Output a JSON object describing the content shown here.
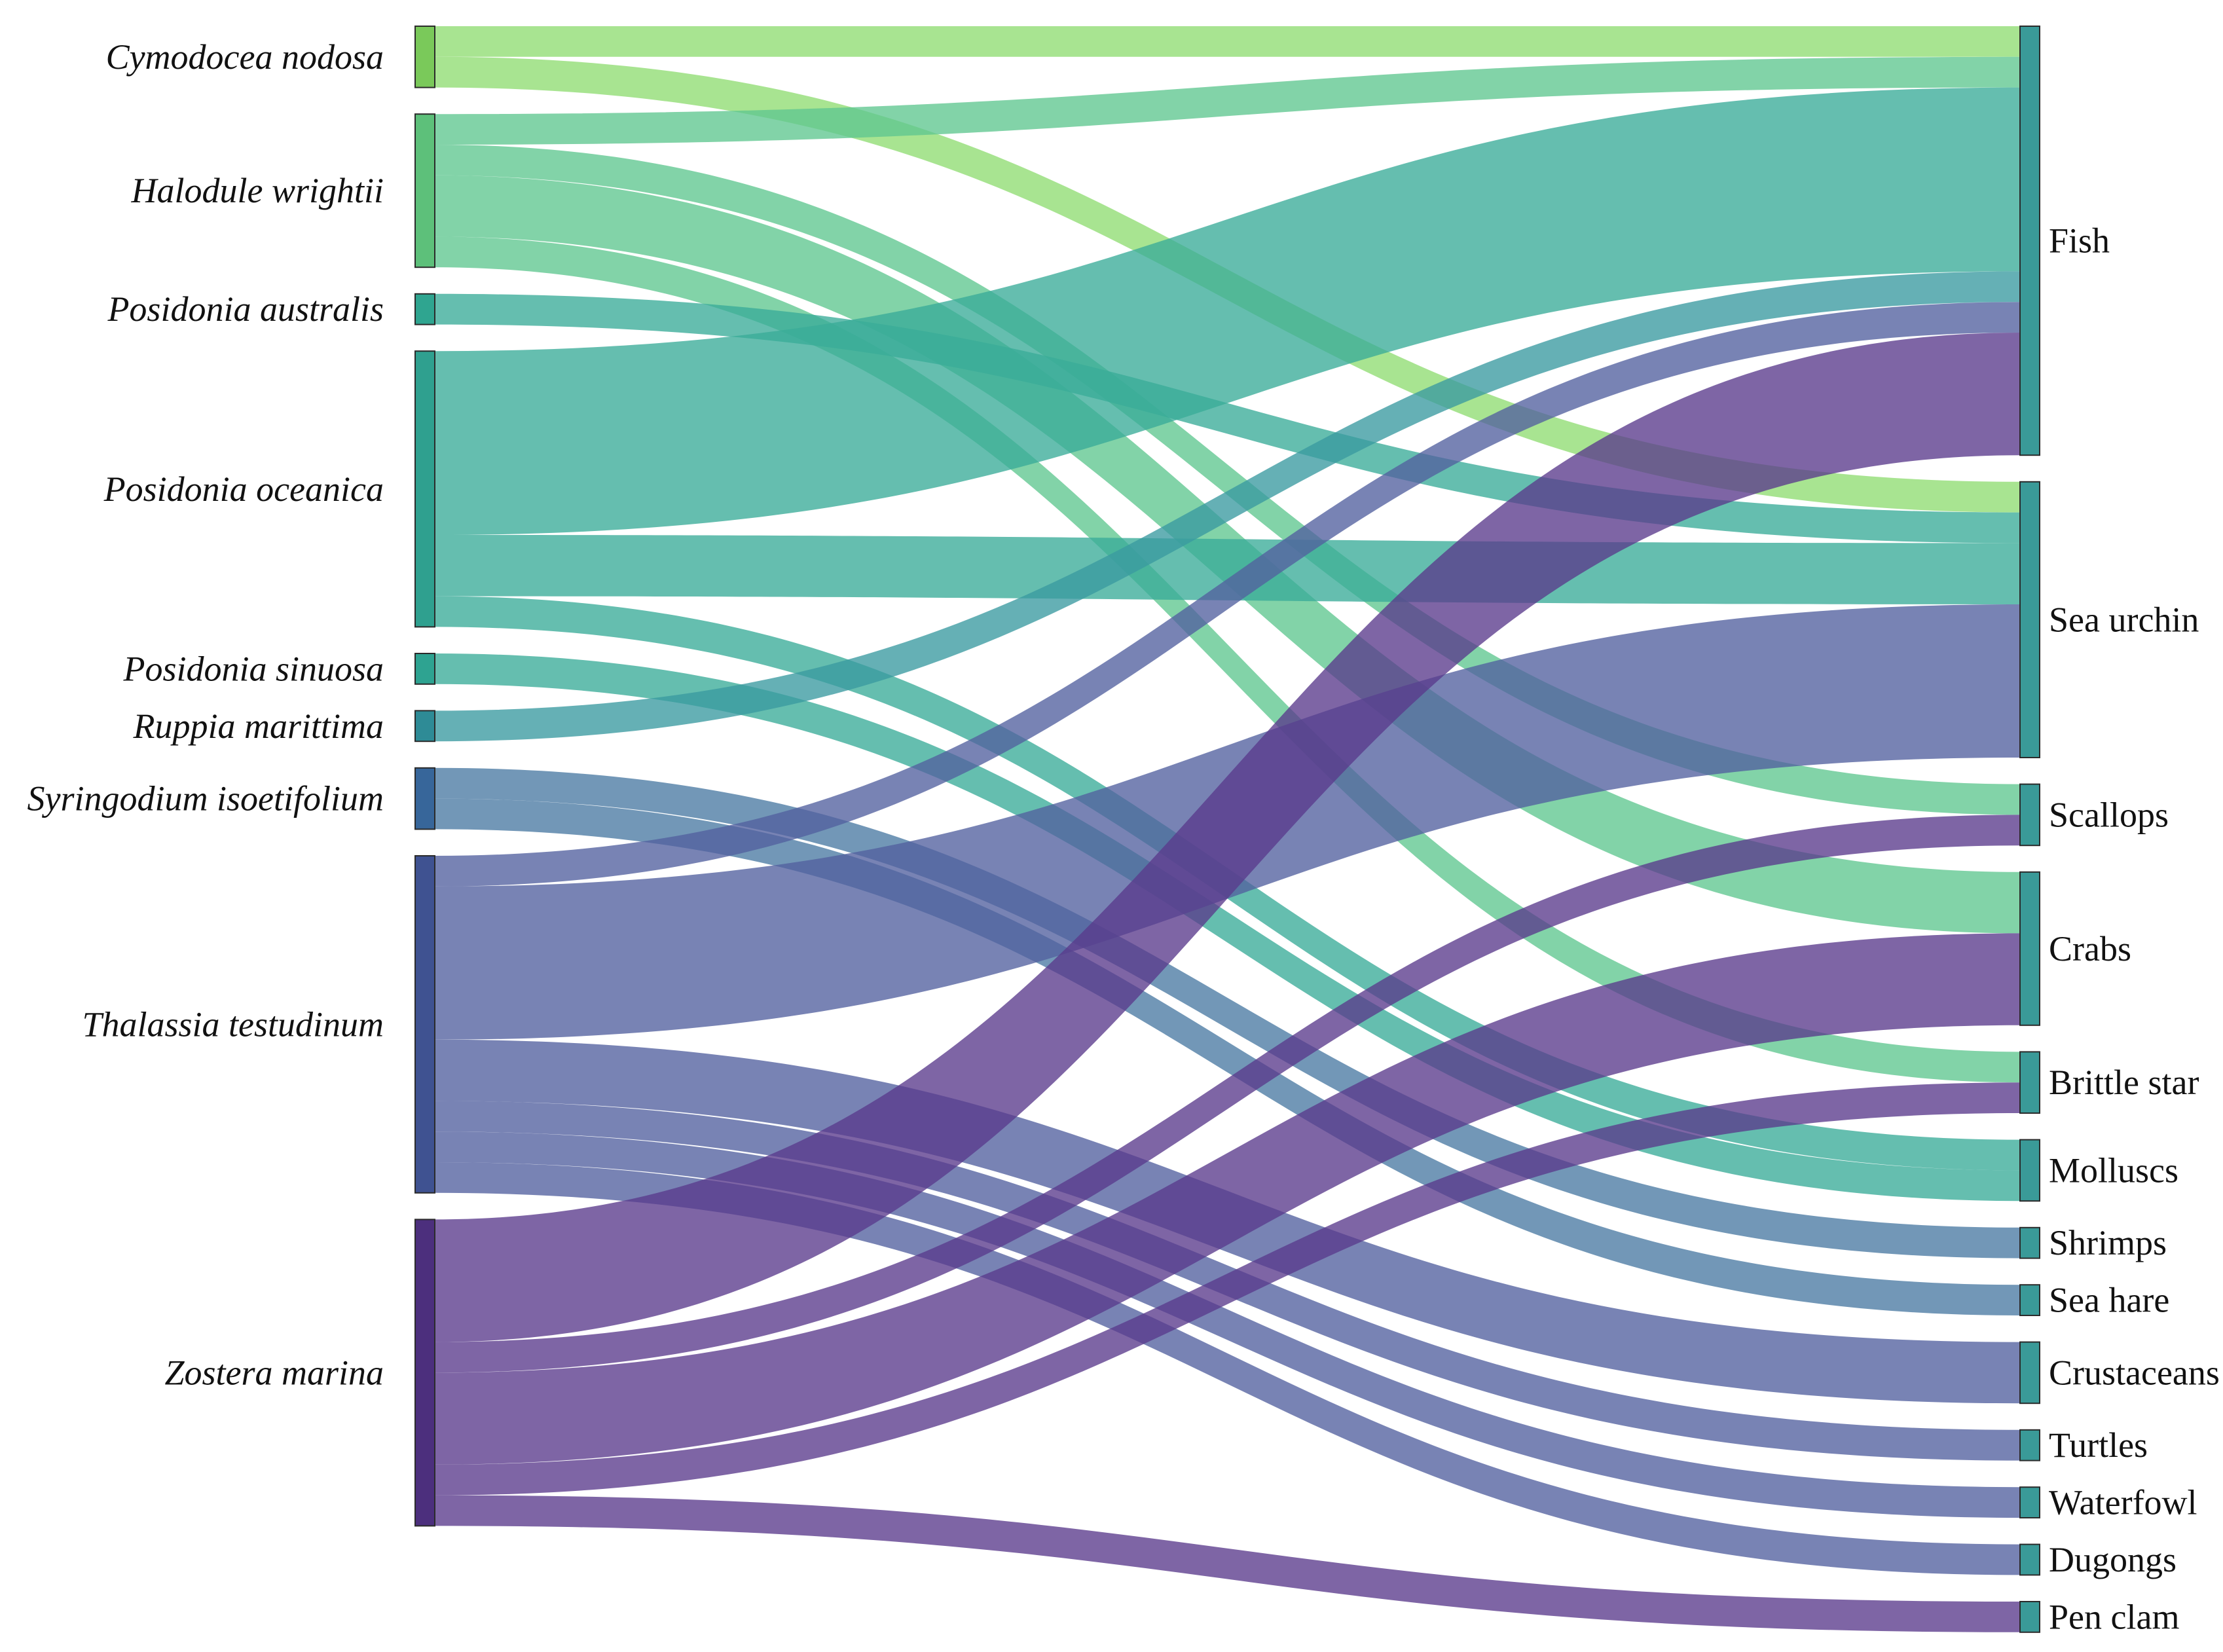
{
  "chart_data": {
    "type": "sankey",
    "value_unit": "link weight (relative)",
    "sources": [
      {
        "name": "Cymodocea nodosa",
        "color": "#7ac95a"
      },
      {
        "name": "Halodule wrightii",
        "color": "#5dc07a"
      },
      {
        "name": "Posidonia australis",
        "color": "#2fa590"
      },
      {
        "name": "Posidonia oceanica",
        "color": "#2fa08f"
      },
      {
        "name": "Posidonia sinuosa",
        "color": "#2ea391"
      },
      {
        "name": "Ruppia marittima",
        "color": "#2e8b96"
      },
      {
        "name": "Syringodium isoetifolium",
        "color": "#37669a"
      },
      {
        "name": "Thalassia testudinum",
        "color": "#3f5291"
      },
      {
        "name": "Zostera marina",
        "color": "#4c2f7d"
      }
    ],
    "targets": [
      {
        "name": "Fish",
        "color": "#3a9a98"
      },
      {
        "name": "Sea urchin",
        "color": "#3a9a98"
      },
      {
        "name": "Scallops",
        "color": "#3a9a98"
      },
      {
        "name": "Crabs",
        "color": "#3a9a98"
      },
      {
        "name": "Brittle star",
        "color": "#3a9a98"
      },
      {
        "name": "Molluscs",
        "color": "#3a9a98"
      },
      {
        "name": "Shrimps",
        "color": "#3a9a98"
      },
      {
        "name": "Sea hare",
        "color": "#3a9a98"
      },
      {
        "name": "Crustaceans",
        "color": "#3a9a98"
      },
      {
        "name": "Turtles",
        "color": "#3a9a98"
      },
      {
        "name": "Waterfowl",
        "color": "#3a9a98"
      },
      {
        "name": "Dugongs",
        "color": "#3a9a98"
      },
      {
        "name": "Pen clam",
        "color": "#3a9a98"
      }
    ],
    "links": [
      {
        "source": "Cymodocea nodosa",
        "target": "Fish",
        "value": 1,
        "color": "#8fdc72"
      },
      {
        "source": "Cymodocea nodosa",
        "target": "Sea urchin",
        "value": 1,
        "color": "#8fdc72"
      },
      {
        "source": "Halodule wrightii",
        "target": "Fish",
        "value": 1,
        "color": "#5fc68f"
      },
      {
        "source": "Halodule wrightii",
        "target": "Crabs",
        "value": 2,
        "color": "#5fc68f"
      },
      {
        "source": "Halodule wrightii",
        "target": "Brittle star",
        "value": 1,
        "color": "#5fc68f"
      },
      {
        "source": "Halodule wrightii",
        "target": "Scallops",
        "value": 1,
        "color": "#5fc68f"
      },
      {
        "source": "Posidonia australis",
        "target": "Sea urchin",
        "value": 1,
        "color": "#3aac98"
      },
      {
        "source": "Posidonia oceanica",
        "target": "Fish",
        "value": 6,
        "color": "#3aac98"
      },
      {
        "source": "Posidonia oceanica",
        "target": "Sea urchin",
        "value": 2,
        "color": "#3aac98"
      },
      {
        "source": "Posidonia oceanica",
        "target": "Molluscs",
        "value": 1,
        "color": "#3aac98"
      },
      {
        "source": "Posidonia sinuosa",
        "target": "Molluscs",
        "value": 1,
        "color": "#3aac98"
      },
      {
        "source": "Ruppia marittima",
        "target": "Fish",
        "value": 1,
        "color": "#3a9aa0"
      },
      {
        "source": "Syringodium isoetifolium",
        "target": "Shrimps",
        "value": 1,
        "color": "#4a7aa3"
      },
      {
        "source": "Syringodium isoetifolium",
        "target": "Sea hare",
        "value": 1,
        "color": "#4a7aa3"
      },
      {
        "source": "Thalassia testudinum",
        "target": "Fish",
        "value": 1,
        "color": "#52609f"
      },
      {
        "source": "Thalassia testudinum",
        "target": "Sea urchin",
        "value": 5,
        "color": "#52609f"
      },
      {
        "source": "Thalassia testudinum",
        "target": "Crustaceans",
        "value": 2,
        "color": "#52609f"
      },
      {
        "source": "Thalassia testudinum",
        "target": "Turtles",
        "value": 1,
        "color": "#52609f"
      },
      {
        "source": "Thalassia testudinum",
        "target": "Waterfowl",
        "value": 1,
        "color": "#52609f"
      },
      {
        "source": "Thalassia testudinum",
        "target": "Dugongs",
        "value": 1,
        "color": "#52609f"
      },
      {
        "source": "Zostera marina",
        "target": "Fish",
        "value": 4,
        "color": "#5a3a8c"
      },
      {
        "source": "Zostera marina",
        "target": "Scallops",
        "value": 1,
        "color": "#5a3a8c"
      },
      {
        "source": "Zostera marina",
        "target": "Crabs",
        "value": 3,
        "color": "#5a3a8c"
      },
      {
        "source": "Zostera marina",
        "target": "Brittle star",
        "value": 1,
        "color": "#5a3a8c"
      },
      {
        "source": "Zostera marina",
        "target": "Pen clam",
        "value": 1,
        "color": "#5a3a8c"
      }
    ]
  }
}
